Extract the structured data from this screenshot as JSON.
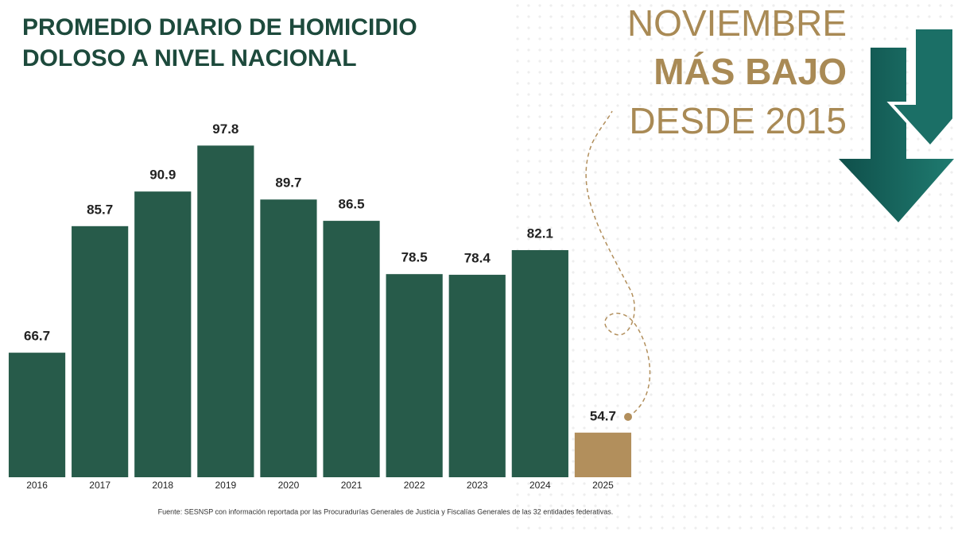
{
  "chart_data": {
    "type": "bar",
    "title": [
      "PROMEDIO DIARIO DE HOMICIDIO",
      "DOLOSO A NIVEL NACIONAL"
    ],
    "annotation": [
      "NOVIEMBRE",
      "MÁS BAJO",
      "DESDE 2015"
    ],
    "source": "Fuente: SESNSP con información reportada por las Procuradurías Generales de Justicia y Fiscalías Generales de las 32 entidades federativas.",
    "categories": [
      "2016",
      "2017",
      "2018",
      "2019",
      "2020",
      "2021",
      "2022",
      "2023",
      "2024",
      "2025"
    ],
    "values": [
      66.7,
      85.7,
      90.9,
      97.8,
      89.7,
      86.5,
      78.5,
      78.4,
      82.1,
      54.7
    ],
    "colors": [
      "#275b4a",
      "#275b4a",
      "#275b4a",
      "#275b4a",
      "#275b4a",
      "#275b4a",
      "#275b4a",
      "#275b4a",
      "#275b4a",
      "#b28f5c"
    ],
    "ylim": [
      48,
      110
    ]
  }
}
